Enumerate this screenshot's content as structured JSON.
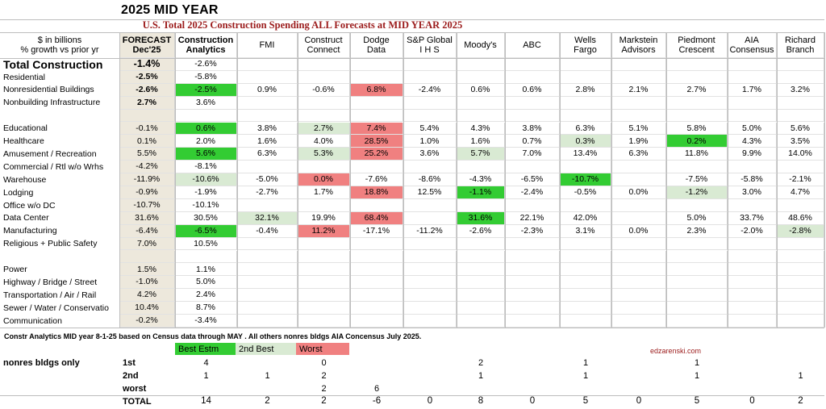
{
  "title": "2025 MID YEAR",
  "subtitle": "U.S. Total 2025 Construction Spending ALL Forecasts at MID YEAR 2025",
  "header": {
    "label_line1": "$ in billions",
    "label_line2": "% growth vs prior yr",
    "columns": [
      {
        "l1": "FORECAST",
        "l2": "Dec'25"
      },
      {
        "l1": "Construction",
        "l2": "Analytics"
      },
      {
        "l1": "",
        "l2": "FMI"
      },
      {
        "l1": "Construct",
        "l2": "Connect"
      },
      {
        "l1": "Dodge",
        "l2": "Data"
      },
      {
        "l1": "S&P Global",
        "l2": "I H S"
      },
      {
        "l1": "",
        "l2": "Moody's"
      },
      {
        "l1": "",
        "l2": "ABC"
      },
      {
        "l1": "Wells",
        "l2": "Fargo"
      },
      {
        "l1": "Markstein",
        "l2": "Advisors"
      },
      {
        "l1": "Piedmont",
        "l2": "Crescent"
      },
      {
        "l1": "AIA",
        "l2": "Consensus"
      },
      {
        "l1": "Richard",
        "l2": "Branch"
      }
    ]
  },
  "rows": [
    {
      "label": "Total Construction",
      "style": "total",
      "cells": [
        "-1.4%",
        "-2.6%",
        "",
        "",
        "",
        "",
        "",
        "",
        "",
        "",
        "",
        "",
        ""
      ]
    },
    {
      "label": "Residential",
      "style": "sub",
      "cells": [
        "-2.5%",
        "-5.8%",
        "",
        "",
        "",
        "",
        "",
        "",
        "",
        "",
        "",
        "",
        ""
      ]
    },
    {
      "label": "Nonresidential Buildings",
      "style": "sub",
      "cells": [
        "-2.6%",
        "-2.5%",
        "0.9%",
        "-0.6%",
        "6.8%",
        "-2.4%",
        "0.6%",
        "0.6%",
        "2.8%",
        "2.1%",
        "2.7%",
        "1.7%",
        "3.2%"
      ],
      "hl": {
        "1": "best",
        "4": "worst"
      }
    },
    {
      "label": "Nonbuilding Infrastructure",
      "style": "sub",
      "cells": [
        "2.7%",
        "3.6%",
        "",
        "",
        "",
        "",
        "",
        "",
        "",
        "",
        "",
        "",
        ""
      ]
    },
    {
      "label": "",
      "style": "blank",
      "cells": [
        "",
        "",
        "",
        "",
        "",
        "",
        "",
        "",
        "",
        "",
        "",
        "",
        ""
      ]
    },
    {
      "label": "Educational",
      "style": "",
      "cells": [
        "-0.1%",
        "0.6%",
        "3.8%",
        "2.7%",
        "7.4%",
        "5.4%",
        "4.3%",
        "3.8%",
        "6.3%",
        "5.1%",
        "5.8%",
        "5.0%",
        "5.6%"
      ],
      "hl": {
        "1": "best",
        "3": "second",
        "4": "worst"
      }
    },
    {
      "label": "Healthcare",
      "style": "",
      "cells": [
        "0.1%",
        "2.0%",
        "1.6%",
        "4.0%",
        "28.5%",
        "1.0%",
        "1.6%",
        "0.7%",
        "0.3%",
        "1.9%",
        "0.2%",
        "4.3%",
        "3.5%"
      ],
      "hl": {
        "4": "worst",
        "8": "second",
        "10": "best"
      }
    },
    {
      "label": "Amusement / Recreation",
      "style": "",
      "cells": [
        "5.5%",
        "5.6%",
        "6.3%",
        "5.3%",
        "25.2%",
        "3.6%",
        "5.7%",
        "7.0%",
        "13.4%",
        "6.3%",
        "11.8%",
        "9.9%",
        "14.0%"
      ],
      "hl": {
        "1": "best",
        "3": "second",
        "4": "worst",
        "6": "second"
      }
    },
    {
      "label": "Commercial / Rtl w/o Wrhs",
      "style": "",
      "cells": [
        "-4.2%",
        "-8.1%",
        "",
        "",
        "",
        "",
        "",
        "",
        "",
        "",
        "",
        "",
        ""
      ]
    },
    {
      "label": "Warehouse",
      "style": "",
      "cells": [
        "-11.9%",
        "-10.6%",
        "-5.0%",
        "0.0%",
        "-7.6%",
        "-8.6%",
        "-4.3%",
        "-6.5%",
        "-10.7%",
        "",
        "-7.5%",
        "-5.8%",
        "-2.1%"
      ],
      "hl": {
        "1": "second",
        "3": "worst",
        "8": "best"
      }
    },
    {
      "label": "Lodging",
      "style": "",
      "cells": [
        "-0.9%",
        "-1.9%",
        "-2.7%",
        "1.7%",
        "18.8%",
        "12.5%",
        "-1.1%",
        "-2.4%",
        "-0.5%",
        "0.0%",
        "-1.2%",
        "3.0%",
        "4.7%"
      ],
      "hl": {
        "4": "worst",
        "6": "best",
        "10": "second"
      }
    },
    {
      "label": "Office w/o DC",
      "style": "",
      "cells": [
        "-10.7%",
        "-10.1%",
        "",
        "",
        "",
        "",
        "",
        "",
        "",
        "",
        "",
        "",
        ""
      ]
    },
    {
      "label": "Data Center",
      "style": "",
      "cells": [
        "31.6%",
        "30.5%",
        "32.1%",
        "19.9%",
        "68.4%",
        "",
        "31.6%",
        "22.1%",
        "42.0%",
        "",
        "5.0%",
        "33.7%",
        "48.6%"
      ],
      "hl": {
        "2": "second",
        "4": "worst",
        "6": "best"
      }
    },
    {
      "label": "Manufacturing",
      "style": "",
      "cells": [
        "-6.4%",
        "-6.5%",
        "-0.4%",
        "11.2%",
        "-17.1%",
        "-11.2%",
        "-2.6%",
        "-2.3%",
        "3.1%",
        "0.0%",
        "2.3%",
        "-2.0%",
        "-2.8%"
      ],
      "hl": {
        "1": "best",
        "3": "worst",
        "12": "second"
      }
    },
    {
      "label": "Religious + Public Safety",
      "style": "",
      "cells": [
        "7.0%",
        "10.5%",
        "",
        "",
        "",
        "",
        "",
        "",
        "",
        "",
        "",
        "",
        ""
      ]
    },
    {
      "label": "",
      "style": "blank",
      "cells": [
        "",
        "",
        "",
        "",
        "",
        "",
        "",
        "",
        "",
        "",
        "",
        "",
        ""
      ]
    },
    {
      "label": "Power",
      "style": "",
      "cells": [
        "1.5%",
        "1.1%",
        "",
        "",
        "",
        "",
        "",
        "",
        "",
        "",
        "",
        "",
        ""
      ]
    },
    {
      "label": "Highway / Bridge / Street",
      "style": "",
      "cells": [
        "-1.0%",
        "5.0%",
        "",
        "",
        "",
        "",
        "",
        "",
        "",
        "",
        "",
        "",
        ""
      ]
    },
    {
      "label": "Transportation / Air / Rail",
      "style": "",
      "cells": [
        "4.2%",
        "2.4%",
        "",
        "",
        "",
        "",
        "",
        "",
        "",
        "",
        "",
        "",
        ""
      ]
    },
    {
      "label": "Sewer / Water / Conservatio",
      "style": "",
      "cells": [
        "10.4%",
        "8.7%",
        "",
        "",
        "",
        "",
        "",
        "",
        "",
        "",
        "",
        "",
        ""
      ]
    },
    {
      "label": "Communication",
      "style": "",
      "cells": [
        "-0.2%",
        "-3.4%",
        "",
        "",
        "",
        "",
        "",
        "",
        "",
        "",
        "",
        "",
        ""
      ]
    }
  ],
  "note": "Constr Analytics MID year 8-1-25 based on Census data through MAY . All others nonres bldgs AIA Concensus July 2025.",
  "legend": {
    "best": "Best Estm",
    "second": "2nd Best",
    "worst": "Worst"
  },
  "website": "edzarenski.com",
  "summary": {
    "label": "nonres bldgs only",
    "rows": [
      {
        "label": "1st",
        "cells": [
          "",
          "4",
          "",
          "0",
          "",
          "",
          "2",
          "",
          "1",
          "",
          "1",
          "",
          ""
        ]
      },
      {
        "label": "2nd",
        "cells": [
          "",
          "1",
          "1",
          "2",
          "",
          "",
          "1",
          "",
          "1",
          "",
          "1",
          "",
          "1"
        ]
      },
      {
        "label": "worst",
        "cells": [
          "",
          "",
          "",
          "2",
          "6",
          "",
          "",
          "",
          "",
          "",
          "",
          "",
          ""
        ]
      },
      {
        "label": "TOTAL",
        "cells": [
          "",
          "14",
          "2",
          "2",
          "-6",
          "0",
          "8",
          "0",
          "5",
          "0",
          "5",
          "0",
          "2"
        ]
      }
    ]
  },
  "colors": {
    "best": "#33cc33",
    "second": "#d9ead3",
    "worst": "#f08080",
    "forecast_col": "#ede8dc",
    "subtitle": "#9b1b1b"
  }
}
